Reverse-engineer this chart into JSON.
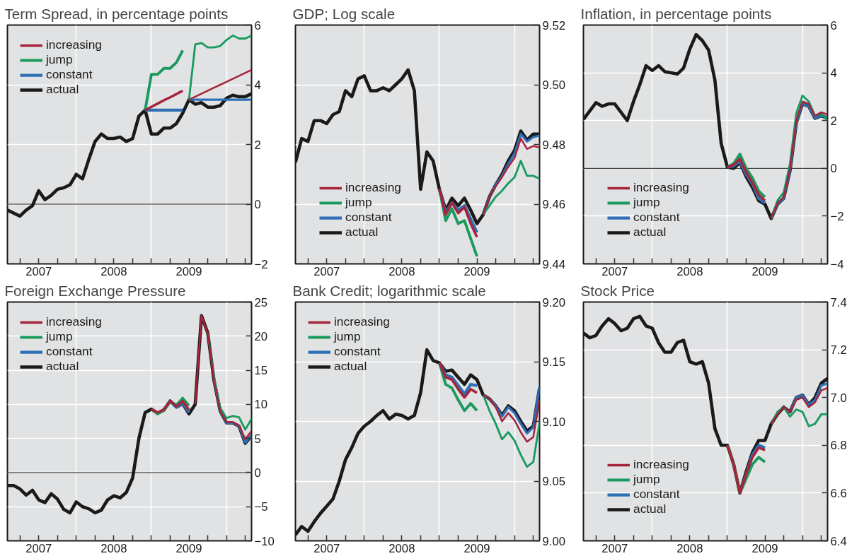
{
  "chart_data": [
    {
      "type": "line",
      "title": "Term Spread, in percentage points",
      "legend": "top left",
      "grid": true,
      "x": [
        "2007-02",
        "2007-03",
        "2007-04",
        "2007-05",
        "2007-06",
        "2007-07",
        "2007-08",
        "2007-09",
        "2007-10",
        "2007-11",
        "2007-12",
        "2008-01",
        "2008-02",
        "2008-03",
        "2008-04",
        "2008-05",
        "2008-06",
        "2008-07",
        "2008-08",
        "2008-09",
        "2008-10",
        "2008-11",
        "2008-12",
        "2009-01",
        "2009-02",
        "2009-03",
        "2009-04",
        "2009-05",
        "2009-06",
        "2009-07",
        "2009-08",
        "2009-09",
        "2009-10",
        "2009-11",
        "2009-12",
        "2010-01",
        "2010-02",
        "2010-03",
        "2010-04",
        "2010-05"
      ],
      "xlim": [
        "2007-02",
        "2010-05"
      ],
      "xticks": [
        {
          "value": "2007-04",
          "label": null
        },
        {
          "value": "2007-07",
          "label": "2007"
        },
        {
          "value": "2007-10",
          "label": null
        },
        {
          "value": "2008-01",
          "label": null
        },
        {
          "value": "2008-04",
          "label": null
        },
        {
          "value": "2008-07",
          "label": "2008"
        },
        {
          "value": "2008-10",
          "label": null
        },
        {
          "value": "2009-01",
          "label": null
        },
        {
          "value": "2009-04",
          "label": null
        },
        {
          "value": "2009-07",
          "label": "2009"
        },
        {
          "value": "2009-10",
          "label": null
        },
        {
          "value": "2010-01",
          "label": null
        },
        {
          "value": "2010-04",
          "label": null
        }
      ],
      "ylim": [
        -2,
        6
      ],
      "yticks": [
        {
          "value": -2,
          "label": "−2"
        },
        0,
        2,
        4,
        6
      ],
      "ref_lines": [
        {
          "axis": "y",
          "value": 0
        }
      ],
      "series": [
        {
          "name": "increasing",
          "color": "#a6243a",
          "x": [
            "2008-12",
            "2009-01",
            "2009-02",
            "2009-03",
            "2009-04",
            "2009-05",
            "2009-06"
          ],
          "values": [
            3.15,
            3.26,
            3.37,
            3.48,
            3.58,
            3.69,
            3.8
          ]
        },
        {
          "name": "jump",
          "color": "#1a9a5f",
          "x": [
            "2008-12",
            "2009-01",
            "2009-02",
            "2009-03",
            "2009-04",
            "2009-05",
            "2009-06"
          ],
          "values": [
            3.15,
            4.35,
            4.35,
            4.55,
            4.55,
            4.75,
            5.15
          ]
        },
        {
          "name": "constant",
          "color": "#2f6fb5",
          "x": [
            "2008-12",
            "2009-01",
            "2009-02",
            "2009-03",
            "2009-04",
            "2009-05",
            "2009-06"
          ],
          "values": [
            3.15,
            3.15,
            3.15,
            3.15,
            3.15,
            3.15,
            3.15
          ]
        },
        {
          "name": "actual",
          "color": "#1a1a1a",
          "values": [
            -0.2,
            -0.3,
            -0.4,
            -0.2,
            -0.05,
            0.45,
            0.15,
            0.3,
            0.5,
            0.55,
            0.65,
            1.0,
            0.85,
            1.5,
            2.1,
            2.35,
            2.2,
            2.2,
            2.25,
            2.1,
            2.2,
            2.95,
            3.15,
            2.35,
            2.35,
            2.55,
            2.55,
            2.7,
            3.05,
            3.5,
            3.35,
            3.4,
            3.25,
            3.25,
            3.3,
            3.55,
            3.65,
            3.6,
            3.6,
            3.7
          ]
        },
        {
          "color": "#a6243a",
          "x": [
            "2009-07",
            "2009-08",
            "2009-09",
            "2009-10",
            "2009-11",
            "2009-12",
            "2010-01",
            "2010-02",
            "2010-03",
            "2010-04",
            "2010-05"
          ],
          "values": [
            3.5,
            3.6,
            3.7,
            3.8,
            3.9,
            4.0,
            4.1,
            4.2,
            4.3,
            4.4,
            4.5
          ]
        },
        {
          "color": "#1a9a5f",
          "x": [
            "2009-07",
            "2009-08",
            "2009-09",
            "2009-10",
            "2009-11",
            "2009-12",
            "2010-01",
            "2010-02",
            "2010-03",
            "2010-04",
            "2010-05"
          ],
          "values": [
            3.5,
            5.35,
            5.4,
            5.25,
            5.25,
            5.3,
            5.5,
            5.65,
            5.55,
            5.55,
            5.65
          ]
        },
        {
          "color": "#2f6fb5",
          "x": [
            "2009-07",
            "2009-08",
            "2009-09",
            "2009-10",
            "2009-11",
            "2009-12",
            "2010-01",
            "2010-02",
            "2010-03",
            "2010-04",
            "2010-05"
          ],
          "values": [
            3.5,
            3.5,
            3.5,
            3.5,
            3.5,
            3.5,
            3.5,
            3.5,
            3.5,
            3.5,
            3.5
          ]
        }
      ]
    },
    {
      "type": "line",
      "title": "GDP; Log scale",
      "legend": "bottom left",
      "grid": true,
      "x": [
        "2007-02",
        "2007-03",
        "2007-04",
        "2007-05",
        "2007-06",
        "2007-07",
        "2007-08",
        "2007-09",
        "2007-10",
        "2007-11",
        "2007-12",
        "2008-01",
        "2008-02",
        "2008-03",
        "2008-04",
        "2008-05",
        "2008-06",
        "2008-07",
        "2008-08",
        "2008-09",
        "2008-10",
        "2008-11",
        "2008-12",
        "2009-01",
        "2009-02",
        "2009-03",
        "2009-04",
        "2009-05",
        "2009-06",
        "2009-07",
        "2009-08",
        "2009-09",
        "2009-10",
        "2009-11",
        "2009-12",
        "2010-01",
        "2010-02",
        "2010-03",
        "2010-04",
        "2010-05"
      ],
      "xlim": [
        "2007-02",
        "2010-05"
      ],
      "xticks": [
        {
          "value": "2007-04",
          "label": null
        },
        {
          "value": "2007-07",
          "label": "2007"
        },
        {
          "value": "2007-10",
          "label": null
        },
        {
          "value": "2008-01",
          "label": null
        },
        {
          "value": "2008-04",
          "label": null
        },
        {
          "value": "2008-07",
          "label": "2008"
        },
        {
          "value": "2008-10",
          "label": null
        },
        {
          "value": "2009-01",
          "label": null
        },
        {
          "value": "2009-04",
          "label": null
        },
        {
          "value": "2009-07",
          "label": "2009"
        },
        {
          "value": "2009-10",
          "label": null
        },
        {
          "value": "2010-01",
          "label": null
        },
        {
          "value": "2010-04",
          "label": null
        }
      ],
      "ylim": [
        9.44,
        9.52
      ],
      "yticks": [
        9.44,
        9.46,
        9.48,
        {
          "value": 9.5,
          "label": "9.50"
        },
        9.52
      ],
      "series": [
        {
          "name": "increasing",
          "color": "#a6243a",
          "x": [
            "2009-01",
            "2009-02",
            "2009-03",
            "2009-04",
            "2009-05",
            "2009-06",
            "2009-07"
          ],
          "values": [
            9.465,
            9.4565,
            9.4605,
            9.457,
            9.459,
            9.4535,
            9.449
          ]
        },
        {
          "name": "jump",
          "color": "#1a9a5f",
          "x": [
            "2009-01",
            "2009-02",
            "2009-03",
            "2009-04",
            "2009-05",
            "2009-06",
            "2009-07"
          ],
          "values": [
            9.465,
            9.4545,
            9.4585,
            9.4535,
            9.4545,
            9.4485,
            9.4425
          ]
        },
        {
          "name": "constant",
          "color": "#2f6fb5",
          "x": [
            "2009-01",
            "2009-02",
            "2009-03",
            "2009-04",
            "2009-05",
            "2009-06",
            "2009-07"
          ],
          "values": [
            9.465,
            9.457,
            9.4605,
            9.458,
            9.4595,
            9.455,
            9.4505
          ]
        },
        {
          "name": "actual",
          "color": "#1a1a1a",
          "values": [
            9.474,
            9.482,
            9.481,
            9.488,
            9.488,
            9.487,
            9.49,
            9.491,
            9.498,
            9.496,
            9.502,
            9.503,
            9.498,
            9.498,
            9.499,
            9.498,
            9.5,
            9.502,
            9.505,
            9.498,
            9.465,
            9.4775,
            9.4745,
            9.465,
            9.458,
            9.462,
            9.4595,
            9.462,
            9.458,
            9.4535,
            9.4565,
            9.4625,
            9.4665,
            9.47,
            9.4745,
            9.478,
            9.4845,
            9.4815,
            9.4835,
            9.4835
          ]
        },
        {
          "color": "#a6243a",
          "x": [
            "2009-08",
            "2009-09",
            "2009-10",
            "2009-11",
            "2009-12",
            "2010-01",
            "2010-02",
            "2010-03",
            "2010-04",
            "2010-05"
          ],
          "values": [
            9.4565,
            9.4625,
            9.466,
            9.469,
            9.4725,
            9.4755,
            9.482,
            9.4785,
            9.4795,
            9.479
          ]
        },
        {
          "color": "#1a9a5f",
          "x": [
            "2009-08",
            "2009-09",
            "2009-10",
            "2009-11",
            "2009-12",
            "2010-01",
            "2010-02",
            "2010-03",
            "2010-04",
            "2010-05"
          ],
          "values": [
            9.4565,
            9.4595,
            9.4625,
            9.4645,
            9.467,
            9.469,
            9.4745,
            9.4695,
            9.4695,
            9.4685
          ]
        },
        {
          "color": "#2f6fb5",
          "x": [
            "2009-08",
            "2009-09",
            "2009-10",
            "2009-11",
            "2009-12",
            "2010-01",
            "2010-02",
            "2010-03",
            "2010-04",
            "2010-05"
          ],
          "values": [
            9.4565,
            9.4625,
            9.4665,
            9.4695,
            9.4735,
            9.477,
            9.4835,
            9.481,
            9.4825,
            9.483
          ]
        }
      ]
    },
    {
      "type": "line",
      "title": "Inflation, in percentage points",
      "legend": "bottom left",
      "grid": true,
      "x": [
        "2007-02",
        "2007-03",
        "2007-04",
        "2007-05",
        "2007-06",
        "2007-07",
        "2007-08",
        "2007-09",
        "2007-10",
        "2007-11",
        "2007-12",
        "2008-01",
        "2008-02",
        "2008-03",
        "2008-04",
        "2008-05",
        "2008-06",
        "2008-07",
        "2008-08",
        "2008-09",
        "2008-10",
        "2008-11",
        "2008-12",
        "2009-01",
        "2009-02",
        "2009-03",
        "2009-04",
        "2009-05",
        "2009-06",
        "2009-07",
        "2009-08",
        "2009-09",
        "2009-10",
        "2009-11",
        "2009-12",
        "2010-01",
        "2010-02",
        "2010-03",
        "2010-04",
        "2010-05"
      ],
      "xlim": [
        "2007-02",
        "2010-05"
      ],
      "xticks": [
        {
          "value": "2007-04",
          "label": null
        },
        {
          "value": "2007-07",
          "label": "2007"
        },
        {
          "value": "2007-10",
          "label": null
        },
        {
          "value": "2008-01",
          "label": null
        },
        {
          "value": "2008-04",
          "label": null
        },
        {
          "value": "2008-07",
          "label": "2008"
        },
        {
          "value": "2008-10",
          "label": null
        },
        {
          "value": "2009-01",
          "label": null
        },
        {
          "value": "2009-04",
          "label": null
        },
        {
          "value": "2009-07",
          "label": "2009"
        },
        {
          "value": "2009-10",
          "label": null
        },
        {
          "value": "2010-01",
          "label": null
        },
        {
          "value": "2010-04",
          "label": null
        }
      ],
      "ylim": [
        -4,
        6
      ],
      "yticks": [
        {
          "value": -4,
          "label": "−4"
        },
        {
          "value": -2,
          "label": "−2"
        },
        0,
        2,
        4,
        6
      ],
      "ref_lines": [
        {
          "axis": "y",
          "value": 0
        }
      ],
      "series": [
        {
          "name": "increasing",
          "color": "#a6243a",
          "x": [
            "2009-01",
            "2009-02",
            "2009-03",
            "2009-04",
            "2009-05",
            "2009-06",
            "2009-07"
          ],
          "values": [
            0.05,
            0.15,
            0.4,
            -0.15,
            -0.6,
            -1.1,
            -1.35
          ]
        },
        {
          "name": "jump",
          "color": "#1a9a5f",
          "x": [
            "2009-01",
            "2009-02",
            "2009-03",
            "2009-04",
            "2009-05",
            "2009-06",
            "2009-07"
          ],
          "values": [
            0.05,
            0.2,
            0.6,
            0.0,
            -0.4,
            -0.95,
            -1.2
          ]
        },
        {
          "name": "constant",
          "color": "#2f6fb5",
          "x": [
            "2009-01",
            "2009-02",
            "2009-03",
            "2009-04",
            "2009-05",
            "2009-06",
            "2009-07"
          ],
          "values": [
            0.05,
            0.1,
            0.3,
            -0.25,
            -0.65,
            -1.25,
            -1.45
          ]
        },
        {
          "name": "actual",
          "color": "#1a1a1a",
          "values": [
            2.05,
            2.4,
            2.75,
            2.6,
            2.7,
            2.7,
            2.35,
            2.0,
            2.8,
            3.5,
            4.3,
            4.1,
            4.3,
            4.05,
            4.0,
            3.95,
            4.2,
            5.0,
            5.6,
            5.35,
            4.95,
            3.7,
            1.05,
            0.05,
            0.0,
            0.25,
            -0.35,
            -0.8,
            -1.35,
            -1.5,
            -2.1,
            -1.5,
            -1.25,
            -0.1,
            1.9,
            2.7,
            2.6,
            2.1,
            2.2,
            2.1
          ]
        },
        {
          "color": "#a6243a",
          "x": [
            "2009-08",
            "2009-09",
            "2009-10",
            "2009-11",
            "2009-12",
            "2010-01",
            "2010-02",
            "2010-03",
            "2010-04",
            "2010-05"
          ],
          "values": [
            -2.1,
            -1.45,
            -1.2,
            0.0,
            2.0,
            2.8,
            2.7,
            2.2,
            2.35,
            2.25
          ]
        },
        {
          "color": "#1a9a5f",
          "x": [
            "2009-08",
            "2009-09",
            "2009-10",
            "2009-11",
            "2009-12",
            "2010-01",
            "2010-02",
            "2010-03",
            "2010-04",
            "2010-05"
          ],
          "values": [
            -2.1,
            -1.35,
            -1.0,
            0.2,
            2.3,
            3.05,
            2.8,
            2.2,
            2.3,
            2.0
          ]
        },
        {
          "color": "#2f6fb5",
          "x": [
            "2009-08",
            "2009-09",
            "2009-10",
            "2009-11",
            "2009-12",
            "2010-01",
            "2010-02",
            "2010-03",
            "2010-04",
            "2010-05"
          ],
          "values": [
            -2.1,
            -1.5,
            -1.25,
            -0.1,
            1.9,
            2.7,
            2.6,
            2.1,
            2.2,
            2.15
          ]
        }
      ]
    },
    {
      "type": "line",
      "title": "Foreign Exchange Pressure",
      "legend": "top left",
      "grid": true,
      "x": [
        "2007-02",
        "2007-03",
        "2007-04",
        "2007-05",
        "2007-06",
        "2007-07",
        "2007-08",
        "2007-09",
        "2007-10",
        "2007-11",
        "2007-12",
        "2008-01",
        "2008-02",
        "2008-03",
        "2008-04",
        "2008-05",
        "2008-06",
        "2008-07",
        "2008-08",
        "2008-09",
        "2008-10",
        "2008-11",
        "2008-12",
        "2009-01",
        "2009-02",
        "2009-03",
        "2009-04",
        "2009-05",
        "2009-06",
        "2009-07",
        "2009-08",
        "2009-09",
        "2009-10",
        "2009-11",
        "2009-12",
        "2010-01",
        "2010-02",
        "2010-03",
        "2010-04",
        "2010-05"
      ],
      "xlim": [
        "2007-02",
        "2010-05"
      ],
      "xticks": [
        {
          "value": "2007-04",
          "label": null
        },
        {
          "value": "2007-07",
          "label": "2007"
        },
        {
          "value": "2007-10",
          "label": null
        },
        {
          "value": "2008-01",
          "label": null
        },
        {
          "value": "2008-04",
          "label": null
        },
        {
          "value": "2008-07",
          "label": "2008"
        },
        {
          "value": "2008-10",
          "label": null
        },
        {
          "value": "2009-01",
          "label": null
        },
        {
          "value": "2009-04",
          "label": null
        },
        {
          "value": "2009-07",
          "label": "2009"
        },
        {
          "value": "2009-10",
          "label": null
        },
        {
          "value": "2010-01",
          "label": null
        },
        {
          "value": "2010-04",
          "label": null
        }
      ],
      "ylim": [
        -10,
        25
      ],
      "yticks": [
        {
          "value": -10,
          "label": "−10"
        },
        {
          "value": -5,
          "label": "−5"
        },
        0,
        5,
        10,
        15,
        20,
        25
      ],
      "ref_lines": [
        {
          "axis": "y",
          "value": 0
        }
      ],
      "series": [
        {
          "name": "increasing",
          "color": "#a6243a",
          "x": [
            "2009-01",
            "2009-02",
            "2009-03",
            "2009-04",
            "2009-05",
            "2009-06",
            "2009-07"
          ],
          "values": [
            9.3,
            8.8,
            9.2,
            10.5,
            9.7,
            10.5,
            9.2
          ]
        },
        {
          "name": "jump",
          "color": "#1a9a5f",
          "x": [
            "2009-01",
            "2009-02",
            "2009-03",
            "2009-04",
            "2009-05",
            "2009-06",
            "2009-07"
          ],
          "values": [
            9.3,
            8.6,
            9.1,
            10.4,
            9.9,
            10.9,
            9.8
          ]
        },
        {
          "name": "constant",
          "color": "#2f6fb5",
          "x": [
            "2009-03",
            "2009-04",
            "2009-05",
            "2009-06",
            "2009-07"
          ],
          "values": [
            9.2,
            10.5,
            9.6,
            10.2,
            8.8
          ]
        },
        {
          "name": "actual",
          "color": "#1a1a1a",
          "values": [
            -1.9,
            -1.9,
            -2.4,
            -3.3,
            -2.6,
            -4.0,
            -4.4,
            -3.1,
            -3.9,
            -5.4,
            -5.9,
            -4.3,
            -5.0,
            -5.3,
            -5.9,
            -5.5,
            -4.0,
            -3.4,
            -3.7,
            -2.9,
            -0.8,
            5.0,
            8.8,
            9.3,
            8.7,
            9.2,
            10.5,
            9.6,
            10.1,
            8.6,
            10.0,
            23.0,
            20.5,
            13.5,
            9.0,
            7.3,
            7.3,
            6.8,
            4.3,
            5.4
          ]
        },
        {
          "color": "#a6243a",
          "x": [
            "2009-08",
            "2009-09",
            "2009-10",
            "2009-11",
            "2009-12",
            "2010-01",
            "2010-02",
            "2010-03",
            "2010-04",
            "2010-05"
          ],
          "values": [
            10.0,
            23.0,
            20.5,
            13.5,
            9.0,
            7.4,
            7.4,
            6.9,
            4.9,
            6.1
          ]
        },
        {
          "color": "#1a9a5f",
          "x": [
            "2009-10",
            "2009-11",
            "2009-12",
            "2010-01",
            "2010-02",
            "2010-03",
            "2010-04",
            "2010-05"
          ],
          "values": [
            20.5,
            14.0,
            9.5,
            8.0,
            8.3,
            8.1,
            6.3,
            7.9
          ]
        },
        {
          "color": "#2f6fb5",
          "x": [
            "2009-11",
            "2009-12",
            "2010-01",
            "2010-02",
            "2010-03",
            "2010-04",
            "2010-05"
          ],
          "values": [
            13.5,
            9.0,
            7.3,
            7.3,
            6.8,
            4.4,
            5.4
          ]
        }
      ]
    },
    {
      "type": "line",
      "title": "Bank Credit; logarithmic scale",
      "legend": "top left",
      "grid": true,
      "x": [
        "2007-02",
        "2007-03",
        "2007-04",
        "2007-05",
        "2007-06",
        "2007-07",
        "2007-08",
        "2007-09",
        "2007-10",
        "2007-11",
        "2007-12",
        "2008-01",
        "2008-02",
        "2008-03",
        "2008-04",
        "2008-05",
        "2008-06",
        "2008-07",
        "2008-08",
        "2008-09",
        "2008-10",
        "2008-11",
        "2008-12",
        "2009-01",
        "2009-02",
        "2009-03",
        "2009-04",
        "2009-05",
        "2009-06",
        "2009-07",
        "2009-08",
        "2009-09",
        "2009-10",
        "2009-11",
        "2009-12",
        "2010-01",
        "2010-02",
        "2010-03",
        "2010-04",
        "2010-05"
      ],
      "xlim": [
        "2007-02",
        "2010-05"
      ],
      "xticks": [
        {
          "value": "2007-04",
          "label": null
        },
        {
          "value": "2007-07",
          "label": "2007"
        },
        {
          "value": "2007-10",
          "label": null
        },
        {
          "value": "2008-01",
          "label": null
        },
        {
          "value": "2008-04",
          "label": null
        },
        {
          "value": "2008-07",
          "label": "2008"
        },
        {
          "value": "2008-10",
          "label": null
        },
        {
          "value": "2009-01",
          "label": null
        },
        {
          "value": "2009-04",
          "label": null
        },
        {
          "value": "2009-07",
          "label": "2009"
        },
        {
          "value": "2009-10",
          "label": null
        },
        {
          "value": "2010-01",
          "label": null
        },
        {
          "value": "2010-04",
          "label": null
        }
      ],
      "ylim": [
        9.0,
        9.2
      ],
      "yticks": [
        {
          "value": 9.0,
          "label": "9.00"
        },
        9.05,
        {
          "value": 9.1,
          "label": "9.10"
        },
        9.15,
        {
          "value": 9.2,
          "label": "9.20"
        }
      ],
      "series": [
        {
          "name": "increasing",
          "color": "#a6243a",
          "x": [
            "2009-01",
            "2009-02",
            "2009-03",
            "2009-04",
            "2009-05",
            "2009-06",
            "2009-07"
          ],
          "values": [
            9.149,
            9.137,
            9.135,
            9.127,
            9.12,
            9.127,
            9.124
          ]
        },
        {
          "name": "jump",
          "color": "#1a9a5f",
          "x": [
            "2009-01",
            "2009-02",
            "2009-03",
            "2009-04",
            "2009-05",
            "2009-06",
            "2009-07"
          ],
          "values": [
            9.149,
            9.131,
            9.128,
            9.118,
            9.109,
            9.115,
            9.109
          ]
        },
        {
          "name": "constant",
          "color": "#2f6fb5",
          "x": [
            "2009-01",
            "2009-02",
            "2009-03",
            "2009-04",
            "2009-05",
            "2009-06",
            "2009-07"
          ],
          "values": [
            9.149,
            9.139,
            9.137,
            9.13,
            9.123,
            9.131,
            9.13
          ]
        },
        {
          "name": "actual",
          "color": "#1a1a1a",
          "values": [
            9.005,
            9.012,
            9.008,
            9.016,
            9.023,
            9.029,
            9.035,
            9.05,
            9.068,
            9.078,
            9.09,
            9.096,
            9.1,
            9.105,
            9.109,
            9.102,
            9.106,
            9.105,
            9.102,
            9.105,
            9.124,
            9.16,
            9.151,
            9.149,
            9.142,
            9.143,
            9.137,
            9.131,
            9.139,
            9.135,
            9.122,
            9.119,
            9.113,
            9.105,
            9.113,
            9.109,
            9.1,
            9.092,
            9.096,
            9.128
          ]
        },
        {
          "color": "#a6243a",
          "x": [
            "2009-08",
            "2009-09",
            "2009-10",
            "2009-11",
            "2009-12",
            "2010-01",
            "2010-02",
            "2010-03",
            "2010-04",
            "2010-05"
          ],
          "values": [
            9.122,
            9.119,
            9.112,
            9.1,
            9.107,
            9.101,
            9.091,
            9.083,
            9.087,
            9.118
          ]
        },
        {
          "color": "#1a9a5f",
          "x": [
            "2009-08",
            "2009-09",
            "2009-10",
            "2009-11",
            "2009-12",
            "2010-01",
            "2010-02",
            "2010-03",
            "2010-04",
            "2010-05"
          ],
          "values": [
            9.122,
            9.109,
            9.098,
            9.085,
            9.091,
            9.084,
            9.072,
            9.062,
            9.066,
            9.099
          ]
        },
        {
          "color": "#2f6fb5",
          "x": [
            "2009-08",
            "2009-09",
            "2009-10",
            "2009-11",
            "2009-12",
            "2010-01",
            "2010-02",
            "2010-03",
            "2010-04",
            "2010-05"
          ],
          "values": [
            9.122,
            9.119,
            9.113,
            9.104,
            9.112,
            9.107,
            9.098,
            9.09,
            9.095,
            9.129
          ]
        }
      ]
    },
    {
      "type": "line",
      "title": "Stock Price",
      "legend": "bottom left",
      "grid": true,
      "x": [
        "2007-02",
        "2007-03",
        "2007-04",
        "2007-05",
        "2007-06",
        "2007-07",
        "2007-08",
        "2007-09",
        "2007-10",
        "2007-11",
        "2007-12",
        "2008-01",
        "2008-02",
        "2008-03",
        "2008-04",
        "2008-05",
        "2008-06",
        "2008-07",
        "2008-08",
        "2008-09",
        "2008-10",
        "2008-11",
        "2008-12",
        "2009-01",
        "2009-02",
        "2009-03",
        "2009-04",
        "2009-05",
        "2009-06",
        "2009-07",
        "2009-08",
        "2009-09",
        "2009-10",
        "2009-11",
        "2009-12",
        "2010-01",
        "2010-02",
        "2010-03",
        "2010-04",
        "2010-05"
      ],
      "xlim": [
        "2007-02",
        "2010-05"
      ],
      "xticks": [
        {
          "value": "2007-04",
          "label": null
        },
        {
          "value": "2007-07",
          "label": "2007"
        },
        {
          "value": "2007-10",
          "label": null
        },
        {
          "value": "2008-01",
          "label": null
        },
        {
          "value": "2008-04",
          "label": null
        },
        {
          "value": "2008-07",
          "label": "2008"
        },
        {
          "value": "2008-10",
          "label": null
        },
        {
          "value": "2009-01",
          "label": null
        },
        {
          "value": "2009-04",
          "label": null
        },
        {
          "value": "2009-07",
          "label": "2009"
        },
        {
          "value": "2009-10",
          "label": null
        },
        {
          "value": "2010-01",
          "label": null
        },
        {
          "value": "2010-04",
          "label": null
        }
      ],
      "ylim": [
        6.4,
        7.4
      ],
      "yticks": [
        6.4,
        6.6,
        6.8,
        {
          "value": 7.0,
          "label": "7.0"
        },
        7.2,
        7.4
      ],
      "series": [
        {
          "name": "increasing",
          "color": "#a6243a",
          "x": [
            "2009-01",
            "2009-02",
            "2009-03",
            "2009-04",
            "2009-05",
            "2009-06",
            "2009-07"
          ],
          "values": [
            6.8,
            6.72,
            6.6,
            6.68,
            6.75,
            6.79,
            6.78
          ]
        },
        {
          "name": "jump",
          "color": "#1a9a5f",
          "x": [
            "2009-01",
            "2009-02",
            "2009-03",
            "2009-04",
            "2009-05",
            "2009-06",
            "2009-07"
          ],
          "values": [
            6.8,
            6.72,
            6.6,
            6.66,
            6.72,
            6.75,
            6.73
          ]
        },
        {
          "name": "constant",
          "color": "#2f6fb5",
          "x": [
            "2009-03",
            "2009-04",
            "2009-05",
            "2009-06",
            "2009-07"
          ],
          "values": [
            6.6,
            6.68,
            6.76,
            6.8,
            6.79
          ]
        },
        {
          "name": "actual",
          "color": "#1a1a1a",
          "values": [
            7.27,
            7.25,
            7.26,
            7.3,
            7.33,
            7.31,
            7.28,
            7.29,
            7.33,
            7.34,
            7.3,
            7.29,
            7.23,
            7.19,
            7.19,
            7.23,
            7.24,
            7.15,
            7.14,
            7.15,
            7.06,
            6.87,
            6.8,
            6.8,
            6.72,
            6.6,
            6.69,
            6.77,
            6.82,
            6.82,
            6.89,
            6.93,
            6.96,
            6.94,
            7.0,
            7.01,
            6.97,
            7.0,
            7.06,
            7.08
          ]
        },
        {
          "color": "#a6243a",
          "x": [
            "2009-08",
            "2009-09",
            "2009-10",
            "2009-11",
            "2009-12",
            "2010-01",
            "2010-02",
            "2010-03",
            "2010-04",
            "2010-05"
          ],
          "values": [
            6.89,
            6.93,
            6.96,
            6.94,
            6.99,
            7.0,
            6.96,
            6.98,
            7.03,
            7.04
          ]
        },
        {
          "color": "#1a9a5f",
          "x": [
            "2009-08",
            "2009-09",
            "2009-10",
            "2009-11",
            "2009-12",
            "2010-01",
            "2010-02",
            "2010-03",
            "2010-04",
            "2010-05"
          ],
          "values": [
            6.89,
            6.94,
            6.96,
            6.92,
            6.95,
            6.94,
            6.88,
            6.89,
            6.93,
            6.93
          ]
        },
        {
          "color": "#2f6fb5",
          "x": [
            "2009-10",
            "2009-11",
            "2009-12",
            "2010-01",
            "2010-02",
            "2010-03",
            "2010-04",
            "2010-05"
          ],
          "values": [
            6.96,
            6.94,
            7.0,
            7.01,
            6.97,
            6.99,
            7.05,
            7.06
          ]
        }
      ]
    }
  ]
}
